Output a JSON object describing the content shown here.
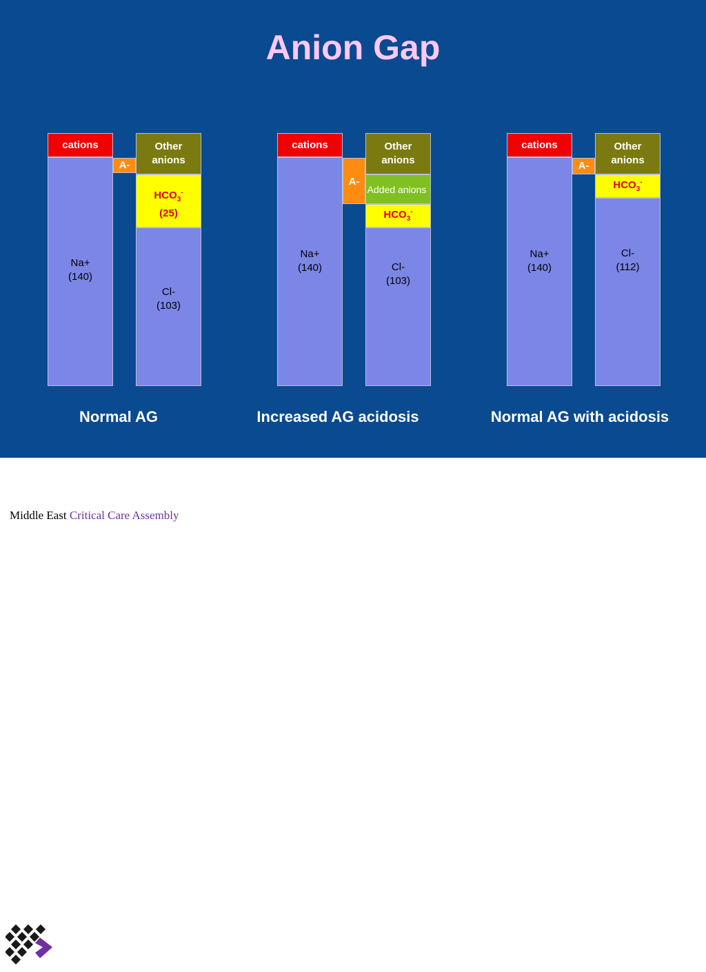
{
  "title": "Anion Gap",
  "colors": {
    "background": "#0a4a90",
    "title": "#ffc8f4",
    "cation_block": "#f00000",
    "sodium_block": "#7b86e6",
    "other_anions_block": "#7a7a10",
    "a_minus_block": "#ff8c10",
    "bicarbonate_block": "#ffff00",
    "added_anions_block": "#80c020",
    "logo_purple": "#7030a0"
  },
  "panels": [
    {
      "caption": "Normal AG",
      "cations_label": "cations",
      "na_label": "Na+",
      "na_value": "(140)",
      "a_minus_label": "A-",
      "other_anions_label_1": "Other",
      "other_anions_label_2": "anions",
      "hco3_label": "HCO",
      "hco3_sub": "3",
      "hco3_sup": "-",
      "hco3_value": "(25)",
      "cl_label": "Cl-",
      "cl_value": "(103)"
    },
    {
      "caption": "Increased AG acidosis",
      "cations_label": "cations",
      "na_label": "Na+",
      "na_value": "(140)",
      "a_minus_label": "A-",
      "other_anions_label_1": "Other",
      "other_anions_label_2": "anions",
      "added_anions_label": "Added anions",
      "hco3_label": "HCO",
      "hco3_sub": "3",
      "hco3_sup": "-",
      "cl_label": "Cl-",
      "cl_value": "(103)"
    },
    {
      "caption": "Normal AG with acidosis",
      "cations_label": "cations",
      "na_label": "Na+",
      "na_value": "(140)",
      "a_minus_label": "A-",
      "other_anions_label_1": "Other",
      "other_anions_label_2": "anions",
      "hco3_label": "HCO",
      "hco3_sub": "3",
      "hco3_sup": "-",
      "cl_label": "Cl-",
      "cl_value": "(112)"
    }
  ],
  "footer": {
    "logo_text_part1": "Middle East",
    "logo_text_part2": "Critical Care Assembly"
  }
}
